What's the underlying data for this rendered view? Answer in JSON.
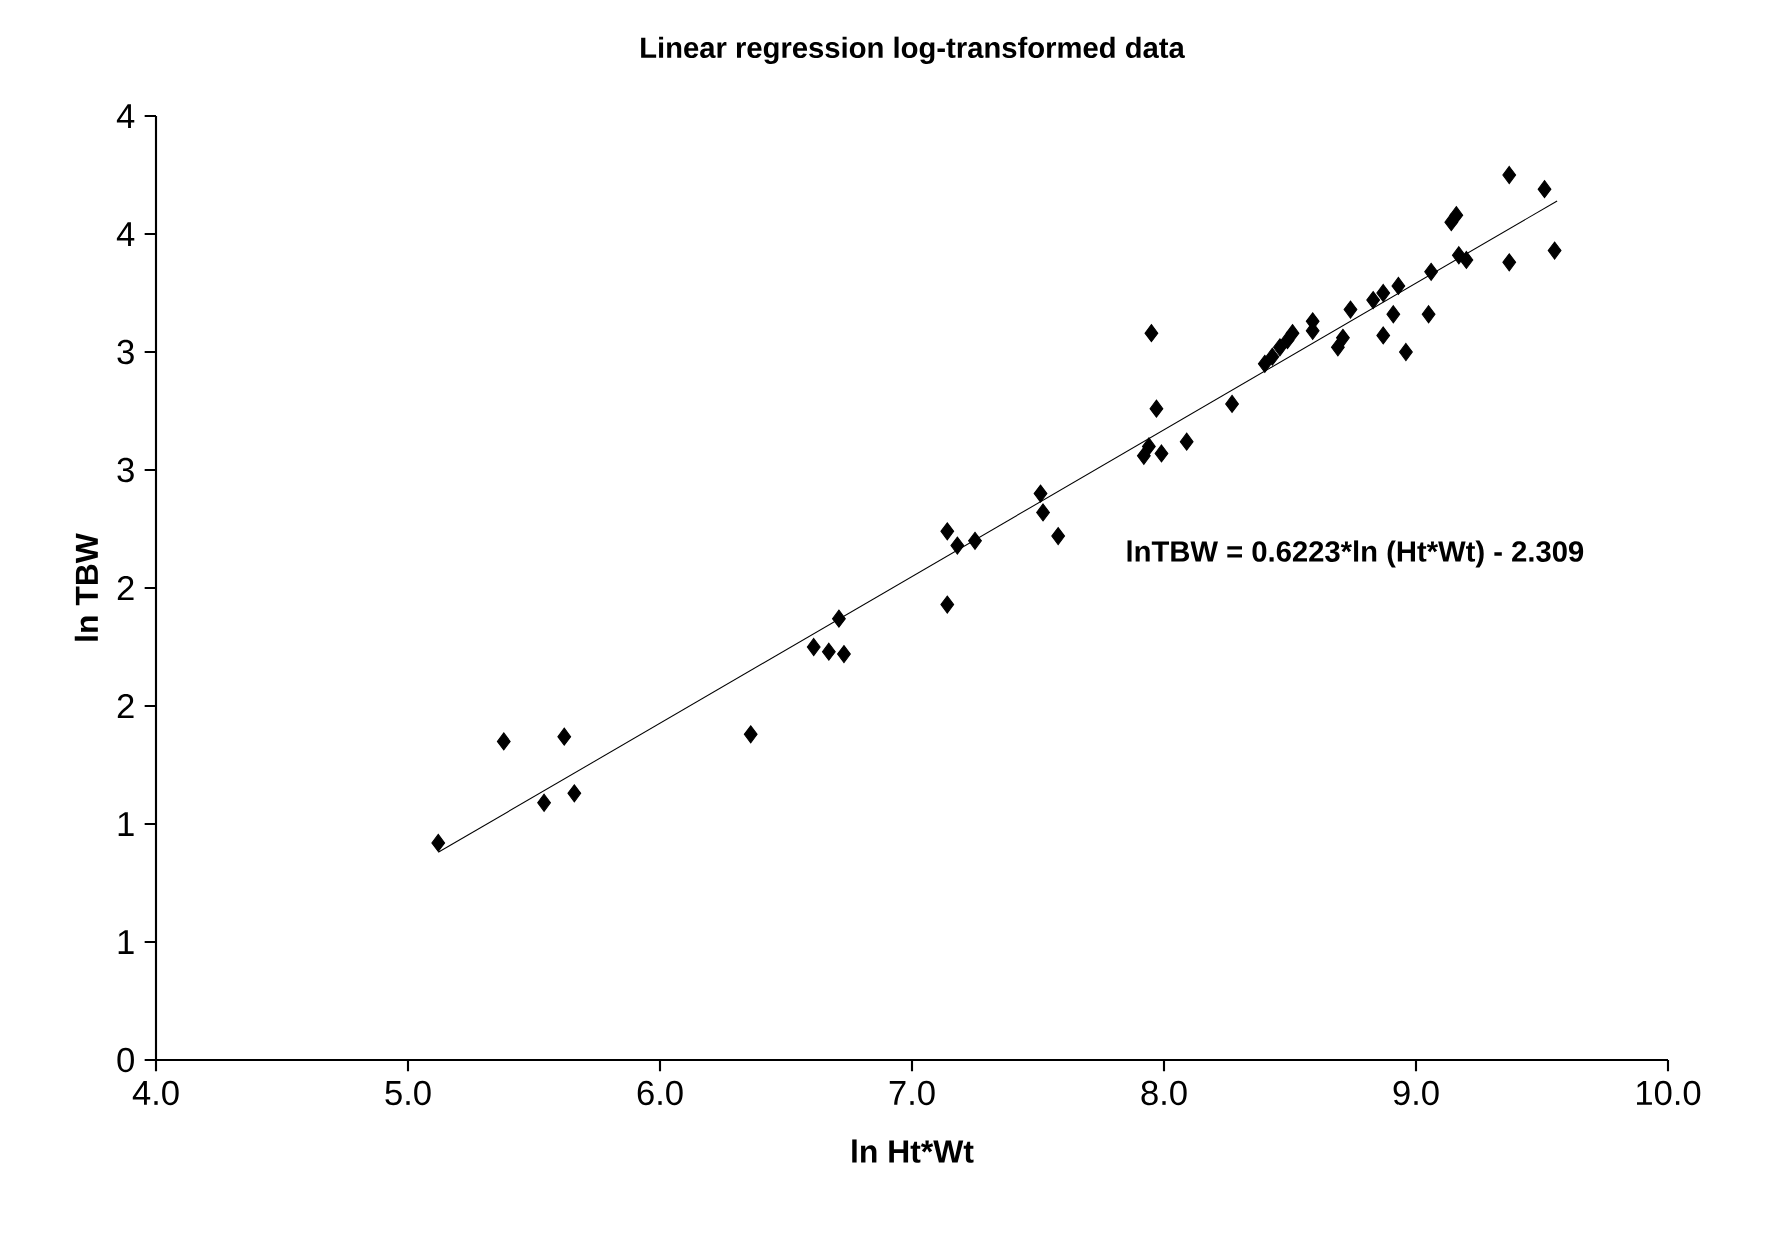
{
  "chart_data": {
    "type": "scatter",
    "title": "Linear regression log-transformed data",
    "xlabel": "ln Ht*Wt",
    "ylabel": "ln TBW",
    "annotations": [
      "lnTBW = 0.6223*ln (Ht*Wt) - 2.309"
    ],
    "xlim": [
      4,
      10
    ],
    "ylim": [
      0,
      4
    ],
    "xticks": [
      {
        "value": 4,
        "label": "4.0"
      },
      {
        "value": 5,
        "label": "5.0"
      },
      {
        "value": 6,
        "label": "6.0"
      },
      {
        "value": 7,
        "label": "7.0"
      },
      {
        "value": 8,
        "label": "8.0"
      },
      {
        "value": 9,
        "label": "9.0"
      },
      {
        "value": 10,
        "label": "10.0"
      }
    ],
    "yticks": [
      0,
      {
        "value": 0.5,
        "label": "1"
      },
      1,
      {
        "value": 1.5,
        "label": "2"
      },
      2,
      {
        "value": 2.5,
        "label": "3"
      },
      3,
      {
        "value": 3.5,
        "label": "4"
      },
      4
    ],
    "marker": "diamond",
    "series": [
      {
        "color": "#000000",
        "x": [
          5.12,
          5.38,
          5.54,
          5.62,
          5.66,
          6.36,
          6.61,
          6.67,
          6.73,
          6.71,
          7.14,
          7.18,
          7.25,
          7.14,
          7.51,
          7.52,
          7.58,
          7.92,
          7.94,
          7.99,
          7.95,
          7.97,
          8.09,
          8.27,
          8.4,
          8.43,
          8.46,
          8.49,
          8.51,
          8.59,
          8.59,
          8.69,
          8.71,
          8.74,
          8.83,
          8.87,
          8.93,
          8.91,
          8.87,
          8.96,
          9.06,
          9.05,
          9.14,
          9.16,
          9.17,
          9.2,
          9.37,
          9.37,
          9.51,
          9.55
        ],
        "values": [
          0.92,
          1.35,
          1.09,
          1.37,
          1.13,
          1.38,
          1.75,
          1.73,
          1.72,
          1.87,
          2.24,
          2.18,
          2.2,
          1.93,
          2.4,
          2.32,
          2.22,
          2.56,
          2.6,
          2.57,
          3.08,
          2.76,
          2.62,
          2.78,
          2.95,
          2.98,
          3.02,
          3.05,
          3.08,
          3.13,
          3.09,
          3.02,
          3.06,
          3.18,
          3.22,
          3.25,
          3.28,
          3.16,
          3.07,
          3.0,
          3.34,
          3.16,
          3.55,
          3.58,
          3.41,
          3.39,
          3.38,
          3.75,
          3.69,
          3.43
        ]
      },
      {
        "type": "line",
        "color": "#000000",
        "marker": "none",
        "x": [
          5.12,
          9.56
        ],
        "values": [
          0.88,
          3.64
        ]
      }
    ]
  }
}
